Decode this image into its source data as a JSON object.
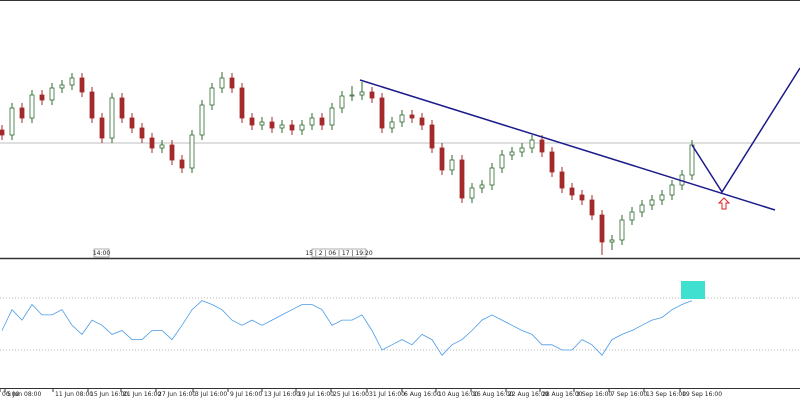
{
  "chart_data": {
    "type": "candlestick",
    "up_color": "#2e6b2e",
    "down_color": "#a32a2a",
    "xlim": [
      -0.2,
      79.8
    ],
    "ylim": [
      0,
      258
    ],
    "open": [
      128,
      123,
      150,
      140,
      163,
      158,
      170,
      173,
      180,
      166,
      140,
      120,
      160,
      140,
      130,
      120,
      110,
      113,
      98,
      90,
      123,
      153,
      170,
      180,
      170,
      140,
      133,
      136,
      130,
      133,
      128,
      133,
      140,
      133,
      150,
      162,
      163,
      166,
      160,
      130,
      136,
      143,
      140,
      133,
      110,
      88,
      98,
      60,
      70,
      73,
      90,
      103,
      106,
      110,
      118,
      106,
      86,
      70,
      63,
      58,
      43,
      16,
      18,
      38,
      46,
      53,
      58,
      63,
      73,
      83
    ],
    "high": [
      133,
      155,
      155,
      168,
      168,
      175,
      178,
      185,
      185,
      171,
      145,
      165,
      165,
      145,
      135,
      125,
      118,
      118,
      103,
      128,
      158,
      175,
      186,
      185,
      175,
      145,
      141,
      141,
      138,
      138,
      138,
      145,
      145,
      155,
      167,
      172,
      176,
      171,
      165,
      141,
      148,
      148,
      145,
      138,
      115,
      103,
      103,
      75,
      78,
      95,
      108,
      111,
      115,
      123,
      123,
      111,
      91,
      75,
      68,
      63,
      48,
      23,
      43,
      51,
      58,
      63,
      68,
      78,
      88,
      118
    ],
    "low": [
      118,
      118,
      135,
      135,
      153,
      153,
      165,
      168,
      161,
      135,
      115,
      115,
      135,
      125,
      115,
      105,
      105,
      93,
      85,
      85,
      118,
      148,
      165,
      165,
      135,
      128,
      128,
      125,
      125,
      123,
      123,
      128,
      128,
      128,
      145,
      157,
      158,
      155,
      125,
      125,
      131,
      135,
      128,
      105,
      83,
      83,
      55,
      55,
      65,
      68,
      85,
      98,
      101,
      105,
      101,
      81,
      65,
      58,
      53,
      38,
      3,
      8,
      13,
      33,
      41,
      48,
      53,
      58,
      68,
      78
    ],
    "close": [
      123,
      150,
      140,
      163,
      158,
      170,
      173,
      180,
      166,
      140,
      120,
      160,
      140,
      130,
      120,
      110,
      113,
      98,
      90,
      123,
      153,
      170,
      180,
      170,
      140,
      133,
      136,
      130,
      133,
      128,
      133,
      140,
      133,
      150,
      162,
      163,
      166,
      160,
      130,
      136,
      143,
      140,
      133,
      110,
      88,
      98,
      60,
      70,
      73,
      90,
      103,
      106,
      110,
      118,
      106,
      86,
      70,
      63,
      58,
      43,
      16,
      18,
      38,
      46,
      53,
      58,
      63,
      73,
      83,
      113
    ],
    "price_line": 115,
    "xticks": [
      {
        "value": -0.2,
        "label": "00:00"
      },
      {
        "value": 0.3,
        "label": "5 Jun 08:00"
      },
      {
        "value": 5.1,
        "label": "11 Jun 08:00"
      },
      {
        "value": 8.6,
        "label": "15 Jun 16:00"
      },
      {
        "value": 11.9,
        "label": "21 Jun 16:00"
      },
      {
        "value": 15.4,
        "label": "27 Jun 16:00"
      },
      {
        "value": 19.1,
        "label": "3 Jul 16:00"
      },
      {
        "value": 22.6,
        "label": "9 Jul 16:00"
      },
      {
        "value": 26,
        "label": "13 Jul 16:00"
      },
      {
        "value": 29.4,
        "label": "19 Jul 16:00"
      },
      {
        "value": 32.9,
        "label": "25 Jul 16:00"
      },
      {
        "value": 36.5,
        "label": "31 Jul 16:00"
      },
      {
        "value": 40,
        "label": "6 Aug 16:00"
      },
      {
        "value": 43.4,
        "label": "10 Aug 16:00"
      },
      {
        "value": 46.9,
        "label": "16 Aug 16:00"
      },
      {
        "value": 50.4,
        "label": "22 Aug 16:00"
      },
      {
        "value": 53.8,
        "label": "28 Aug 16:00"
      },
      {
        "value": 57.2,
        "label": "3 Sep 16:00"
      },
      {
        "value": 60.7,
        "label": "7 Sep 16:00"
      },
      {
        "value": 64.2,
        "label": "13 Sep 16:00"
      },
      {
        "value": 67.8,
        "label": "19 Sep 16:00"
      }
    ],
    "annotations": [
      "14:00",
      "15 | 2 | 06 | 17 | 19:20"
    ],
    "indicator": {
      "color": "#4a9be8",
      "ylim": [
        0,
        100
      ],
      "levels": [
        70,
        30
      ],
      "values": [
        45,
        61,
        53,
        65,
        57,
        57,
        61,
        49,
        42,
        53,
        49,
        42,
        45,
        38,
        38,
        45,
        45,
        38,
        49,
        61,
        68,
        65,
        61,
        53,
        49,
        53,
        49,
        53,
        57,
        61,
        65,
        65,
        61,
        49,
        53,
        53,
        57,
        45,
        30,
        34,
        38,
        34,
        42,
        38,
        26,
        34,
        38,
        45,
        53,
        57,
        53,
        49,
        45,
        42,
        34,
        34,
        30,
        30,
        38,
        34,
        26,
        38,
        42,
        45,
        49,
        53,
        55,
        61,
        65,
        68
      ]
    }
  }
}
